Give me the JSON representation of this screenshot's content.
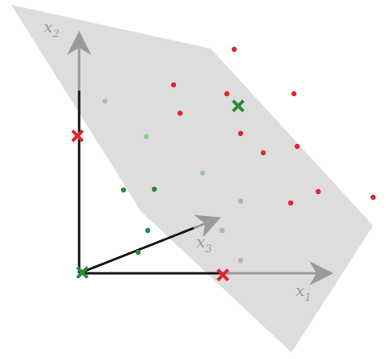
{
  "colors": {
    "plane": "#d9d9d9",
    "axis_black": "#151515",
    "axis_gray": "#9a9a9a",
    "point_red": "#e0252b",
    "point_green": "#2a8a3a",
    "point_light_green": "#9cc59a"
  },
  "axes": {
    "x1": {
      "letter": "x",
      "subscript": "1"
    },
    "x2": {
      "letter": "x",
      "subscript": "2"
    },
    "x3": {
      "letter": "x",
      "subscript": "3"
    }
  },
  "chart_data": {
    "type": "scatter",
    "description_free": true,
    "series": [
      {
        "color_key": "point_red",
        "marker": "dot",
        "points": [
          [
            290,
            61
          ],
          [
            215,
            105
          ],
          [
            281,
            116
          ],
          [
            364,
            116
          ],
          [
            223,
            140
          ],
          [
            298,
            165
          ],
          [
            326,
            189
          ],
          [
            368,
            181
          ],
          [
            360,
            251
          ],
          [
            394,
            237
          ],
          [
            462,
            244
          ]
        ]
      },
      {
        "color_key": "point_light_green",
        "marker": "dot",
        "points": [
          [
            130,
            125
          ],
          [
            181,
            169
          ],
          [
            251,
            214
          ],
          [
            298,
            249
          ],
          [
            275,
            285
          ],
          [
            298,
            322
          ]
        ]
      },
      {
        "color_key": "point_green",
        "marker": "dot",
        "points": [
          [
            153,
            235
          ],
          [
            191,
            234
          ],
          [
            183,
            285
          ],
          [
            171,
            312
          ]
        ]
      },
      {
        "color_key": "point_red",
        "marker": "cross",
        "points": [
          [
            96,
            168
          ],
          [
            276,
            340
          ]
        ]
      },
      {
        "color_key": "point_green",
        "marker": "cross",
        "points": [
          [
            295,
            131
          ],
          [
            102,
            337
          ]
        ]
      }
    ]
  }
}
